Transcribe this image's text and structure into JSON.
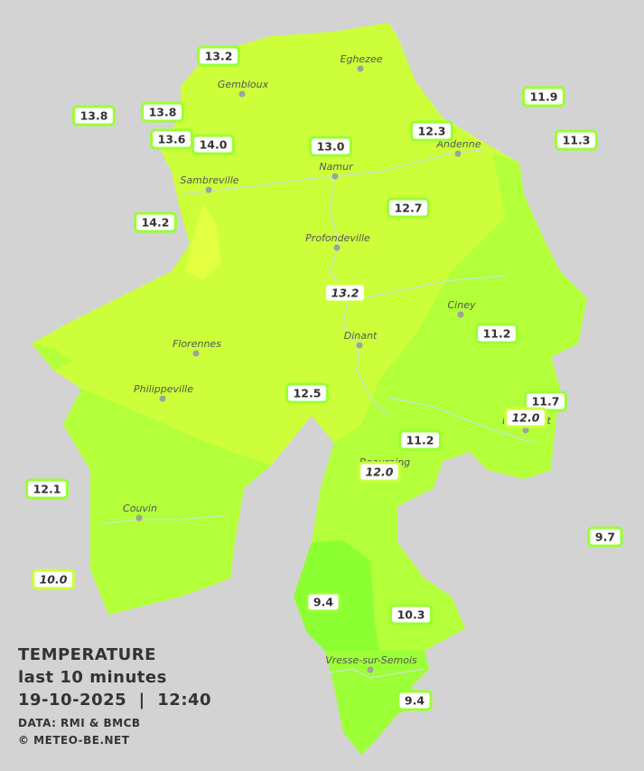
{
  "legend": {
    "title": "TEMPERATURE",
    "period": "last 10 minutes",
    "timestamp": "19-10-2025  |  12:40",
    "source": "DATA: RMI & BMCB",
    "copyright": "© METEO-BE.NET"
  },
  "cities": [
    {
      "name": "Eghezee"
    },
    {
      "name": "Gembloux"
    },
    {
      "name": "Andenne"
    },
    {
      "name": "Namur"
    },
    {
      "name": "Sambreville"
    },
    {
      "name": "Profondeville"
    },
    {
      "name": "Ciney"
    },
    {
      "name": "Dinant"
    },
    {
      "name": "Florennes"
    },
    {
      "name": "Philippeville"
    },
    {
      "name": "Rochefort"
    },
    {
      "name": "Beauraing"
    },
    {
      "name": "Couvin"
    },
    {
      "name": "Vresse-sur-Semois"
    }
  ],
  "stations": [
    {
      "temp": "13.2"
    },
    {
      "temp": "13.8"
    },
    {
      "temp": "13.8"
    },
    {
      "temp": "13.6"
    },
    {
      "temp": "14.0"
    },
    {
      "temp": "13.0"
    },
    {
      "temp": "12.3"
    },
    {
      "temp": "11.9"
    },
    {
      "temp": "11.3"
    },
    {
      "temp": "14.2"
    },
    {
      "temp": "12.7"
    },
    {
      "temp": "13.2"
    },
    {
      "temp": "11.2"
    },
    {
      "temp": "11.7"
    },
    {
      "temp": "12.0"
    },
    {
      "temp": "12.5"
    },
    {
      "temp": "11.2"
    },
    {
      "temp": "12.0"
    },
    {
      "temp": "12.1"
    },
    {
      "temp": "9.7"
    },
    {
      "temp": "10.0"
    },
    {
      "temp": "9.4"
    },
    {
      "temp": "10.3"
    },
    {
      "temp": "9.4"
    }
  ]
}
